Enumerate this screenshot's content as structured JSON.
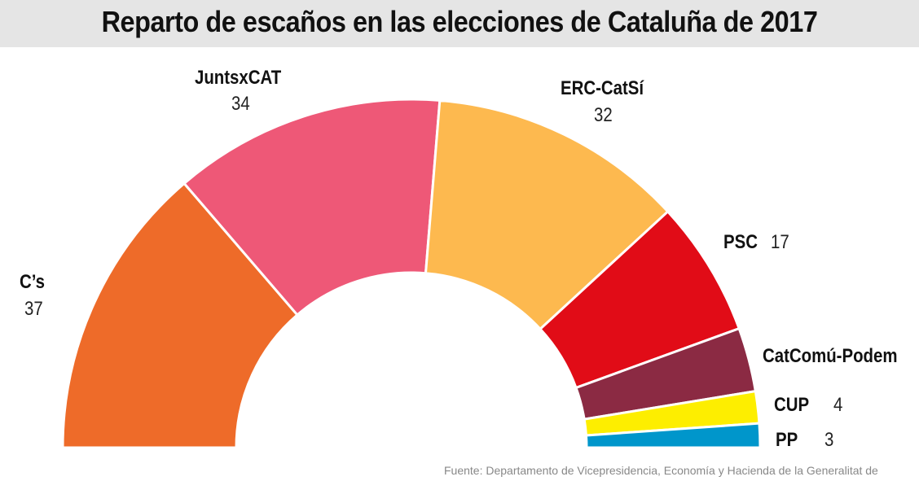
{
  "chart_data": {
    "type": "pie",
    "subtype": "semicircle-donut",
    "title": "Reparto de escaños en las elecciones de Cataluña de 2017",
    "source": "Fuente: Departamento de Vicepresidencia, Economía y Hacienda de la Generalitat de",
    "categories": [
      "C’s",
      "JuntsxCAT",
      "ERC-CatSí",
      "PSC",
      "CatComú-Podem",
      "CUP",
      "PP"
    ],
    "values": [
      37,
      34,
      32,
      17,
      8,
      4,
      3
    ],
    "value_labels": [
      "37",
      "34",
      "32",
      "17",
      "",
      "4",
      "3"
    ],
    "colors": [
      "#ee6b29",
      "#ee5877",
      "#fdb94f",
      "#e10c17",
      "#8b2a43",
      "#fdee00",
      "#0096cb"
    ]
  }
}
